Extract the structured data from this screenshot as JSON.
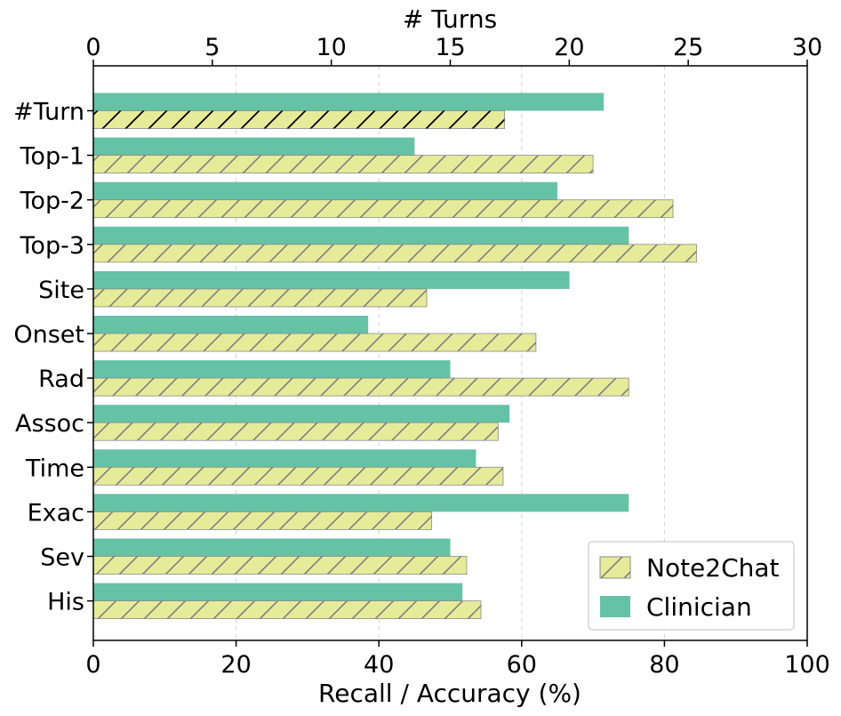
{
  "chart_data": {
    "type": "bar",
    "orientation": "horizontal",
    "categories": [
      "#Turn",
      "Top-1",
      "Top-2",
      "Top-3",
      "Site",
      "Onset",
      "Rad",
      "Assoc",
      "Time",
      "Exac",
      "Sev",
      "His"
    ],
    "series": [
      {
        "name": "Clinician",
        "color": "#66c2a5",
        "pattern": "solid",
        "values": [
          71.5,
          45.0,
          65.0,
          75.0,
          66.7,
          38.5,
          50.0,
          58.3,
          53.6,
          75.0,
          50.0,
          51.7
        ]
      },
      {
        "name": "Note2Chat",
        "color": "#e6eb99",
        "pattern": "hatch",
        "values": [
          57.6,
          70.0,
          81.2,
          84.5,
          46.7,
          62.0,
          75.0,
          56.7,
          57.4,
          47.4,
          52.3,
          54.3
        ]
      }
    ],
    "turn_values": {
      "Clinician": 21.45,
      "Note2Chat": 17.28
    },
    "xlabel": "Recall / Accuracy (%)",
    "x2label": "# Turns",
    "xlim": [
      0,
      100
    ],
    "x2lim": [
      0,
      30
    ],
    "xticks": [
      "0",
      "20",
      "40",
      "60",
      "80",
      "100"
    ],
    "x2ticks": [
      "0",
      "5",
      "10",
      "15",
      "20",
      "25",
      "30"
    ],
    "grid": "vertical dashed",
    "legend": {
      "position": "bottom-right",
      "entries": [
        "Note2Chat",
        "Clinician"
      ]
    }
  }
}
